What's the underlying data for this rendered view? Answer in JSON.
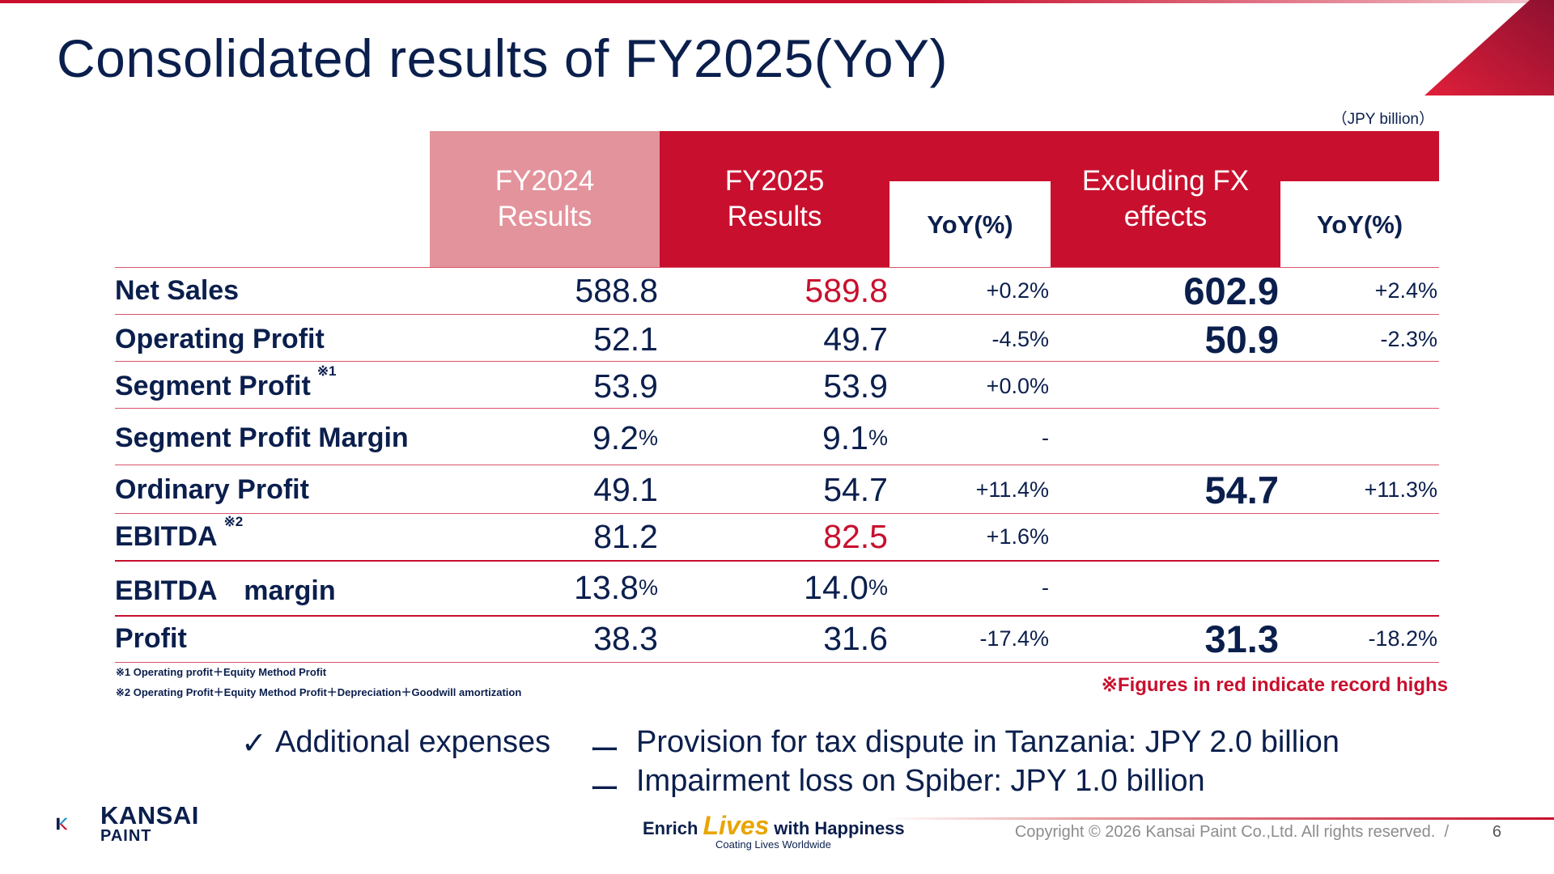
{
  "title": "Consolidated results of FY2025(YoY)",
  "unit": "（JPY billion）",
  "headers": {
    "fy2024": [
      "FY2024",
      "Results"
    ],
    "fy2025": [
      "FY2025",
      "Results"
    ],
    "yoy1": "YoY(%)",
    "exfx": [
      "Excluding FX",
      "effects"
    ],
    "yoy2": "YoY(%)"
  },
  "rows": [
    {
      "label": "Net Sales",
      "note": "",
      "fy2024": "588.8",
      "fy2024_pct": "",
      "fy2025": "589.8",
      "fy2025_pct": "",
      "fy2025_record": true,
      "yoy": "+0.2",
      "yoy_pct": "%",
      "exfx": "602.9",
      "exfx_yoy": "+2.4",
      "exfx_yoy_pct": "%"
    },
    {
      "label": "Operating Profit",
      "note": "",
      "fy2024": "52.1",
      "fy2024_pct": "",
      "fy2025": "49.7",
      "fy2025_pct": "",
      "fy2025_record": false,
      "yoy": "-4.5",
      "yoy_pct": "%",
      "exfx": "50.9",
      "exfx_yoy": "-2.3",
      "exfx_yoy_pct": "%"
    },
    {
      "label": "Segment Profit",
      "note": "※1",
      "fy2024": "53.9",
      "fy2024_pct": "",
      "fy2025": "53.9",
      "fy2025_pct": "",
      "fy2025_record": false,
      "yoy": "+0.0",
      "yoy_pct": "%",
      "exfx": "",
      "exfx_yoy": "",
      "exfx_yoy_pct": ""
    },
    {
      "label": "Segment Profit Margin",
      "note": "",
      "fy2024": "9.2",
      "fy2024_pct": "%",
      "fy2025": "9.1",
      "fy2025_pct": "%",
      "fy2025_record": false,
      "yoy": "-",
      "yoy_pct": "",
      "exfx": "",
      "exfx_yoy": "",
      "exfx_yoy_pct": ""
    },
    {
      "label": "Ordinary Profit",
      "note": "",
      "fy2024": "49.1",
      "fy2024_pct": "",
      "fy2025": "54.7",
      "fy2025_pct": "",
      "fy2025_record": false,
      "yoy": "+11.4",
      "yoy_pct": "%",
      "exfx": "54.7",
      "exfx_yoy": "+11.3",
      "exfx_yoy_pct": "%"
    },
    {
      "label": "EBITDA",
      "note": "※2",
      "fy2024": "81.2",
      "fy2024_pct": "",
      "fy2025": "82.5",
      "fy2025_pct": "",
      "fy2025_record": true,
      "yoy": "+1.6",
      "yoy_pct": "%",
      "exfx": "",
      "exfx_yoy": "",
      "exfx_yoy_pct": ""
    },
    {
      "label": "EBITDA　margin",
      "note": "",
      "fy2024": "13.8",
      "fy2024_pct": "%",
      "fy2025": "14.0",
      "fy2025_pct": "%",
      "fy2025_record": false,
      "yoy": "-",
      "yoy_pct": "",
      "exfx": "",
      "exfx_yoy": "",
      "exfx_yoy_pct": ""
    },
    {
      "label": "Profit",
      "note": "",
      "fy2024": "38.3",
      "fy2024_pct": "",
      "fy2025": "31.6",
      "fy2025_pct": "",
      "fy2025_record": false,
      "yoy": "-17.4",
      "yoy_pct": "%",
      "exfx": "31.3",
      "exfx_yoy": "-18.2",
      "exfx_yoy_pct": "%"
    }
  ],
  "footnotes": [
    "※1 Operating profit＋Equity Method Profit",
    "※2 Operating Profit＋Equity Method Profit＋Depreciation＋Goodwill amortization"
  ],
  "record_note": "※Figures in red indicate record highs",
  "bullets": {
    "check": "✓",
    "head": "Additional expenses",
    "dash": "ー",
    "items": [
      "Provision for tax dispute in Tanzania: JPY 2.0 billion",
      "Impairment loss on Spiber: JPY 1.0 billion"
    ]
  },
  "logo": {
    "line1": "KANSAI",
    "line2": "PAINT"
  },
  "slogan": {
    "pre": "Enrich",
    "highlight": "Lives",
    "post": "with Happiness",
    "sub": "Coating Lives Worldwide"
  },
  "copyright": "Copyright © 2026 Kansai Paint Co.,Ltd. All rights reserved.",
  "page_sep": "/",
  "page": "6",
  "colors": {
    "accent": "#c8102e",
    "light_accent": "#e3939c",
    "navy": "#0b1f4d",
    "slogan_gold": "#e8a500"
  }
}
